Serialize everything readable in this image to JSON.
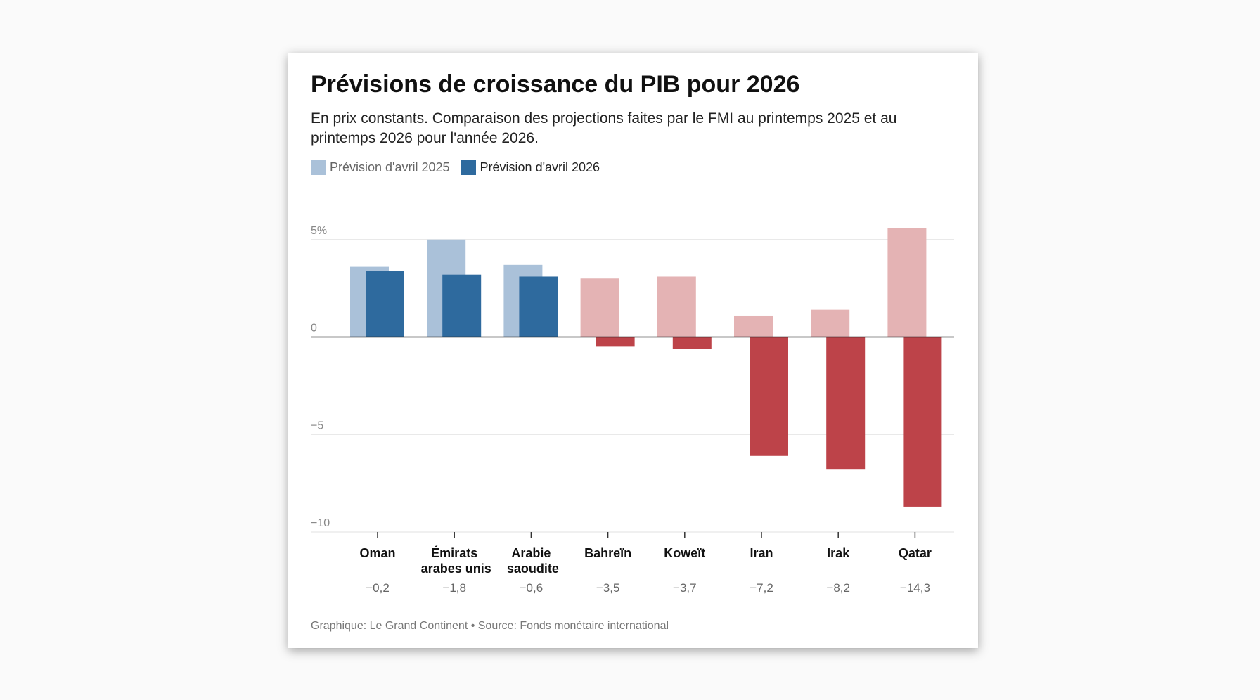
{
  "chart_data": {
    "type": "bar",
    "title": "Prévisions de croissance du PIB pour 2026",
    "subtitle": "En prix constants. Comparaison des projections faites par le FMI au printemps 2025 et au printemps 2026 pour l'année 2026.",
    "categories": [
      "Oman",
      "Émirats arabes unis",
      "Arabie saoudite",
      "Bahreïn",
      "Koweït",
      "Iran",
      "Irak",
      "Qatar"
    ],
    "change_labels": [
      "−0,2",
      "−1,8",
      "−0,6",
      "−3,5",
      "−3,7",
      "−7,2",
      "−8,2",
      "−14,3"
    ],
    "series": [
      {
        "name": "Prévision d'avril 2025",
        "color": "#aac1d9",
        "colors": [
          "#aac1d9",
          "#aac1d9",
          "#aac1d9",
          "#e4b3b4",
          "#e4b3b4",
          "#e4b3b4",
          "#e4b3b4",
          "#e4b3b4"
        ],
        "values": [
          3.6,
          5.0,
          3.7,
          3.0,
          3.1,
          1.1,
          1.4,
          5.6
        ]
      },
      {
        "name": "Prévision d'avril 2026",
        "color": "#2e6a9e",
        "colors": [
          "#2e6a9e",
          "#2e6a9e",
          "#2e6a9e",
          "#bd4349",
          "#bd4349",
          "#bd4349",
          "#bd4349",
          "#bd4349"
        ],
        "values": [
          3.4,
          3.2,
          3.1,
          -0.5,
          -0.6,
          -6.1,
          -6.8,
          -8.7
        ]
      }
    ],
    "ylim": [
      -10,
      6
    ],
    "yticks": [
      {
        "value": 5,
        "label": "5%"
      },
      0,
      {
        "value": -5,
        "label": "−5"
      },
      {
        "value": -10,
        "label": "−10"
      }
    ],
    "grid": true,
    "footer": "Graphique: Le Grand Continent • Source: Fonds monétaire international"
  }
}
